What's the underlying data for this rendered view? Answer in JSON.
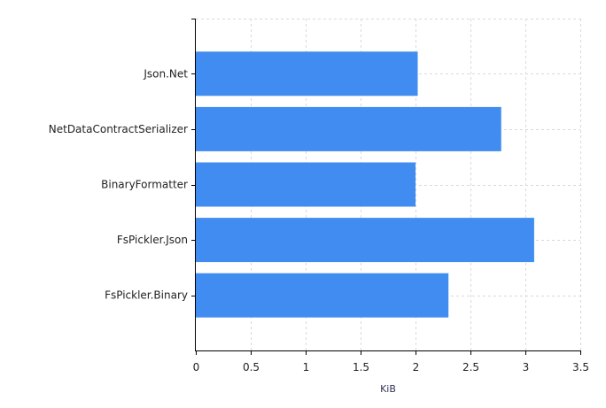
{
  "chart_data": {
    "type": "bar",
    "orientation": "horizontal",
    "title": "",
    "xlabel": "KiB",
    "ylabel": "",
    "categories": [
      "Json.Net",
      "NetDataContractSerializer",
      "BinaryFormatter",
      "FsPickler.Json",
      "FsPickler.Binary"
    ],
    "values": [
      2.02,
      2.78,
      2.0,
      3.08,
      2.3
    ],
    "xlim": [
      0,
      3.5
    ],
    "xticks": [
      "0",
      "0.5",
      "1",
      "1.5",
      "2",
      "2.5",
      "3",
      "3.5"
    ],
    "grid": true,
    "legend": "none",
    "bar_color": "#418cf0"
  }
}
